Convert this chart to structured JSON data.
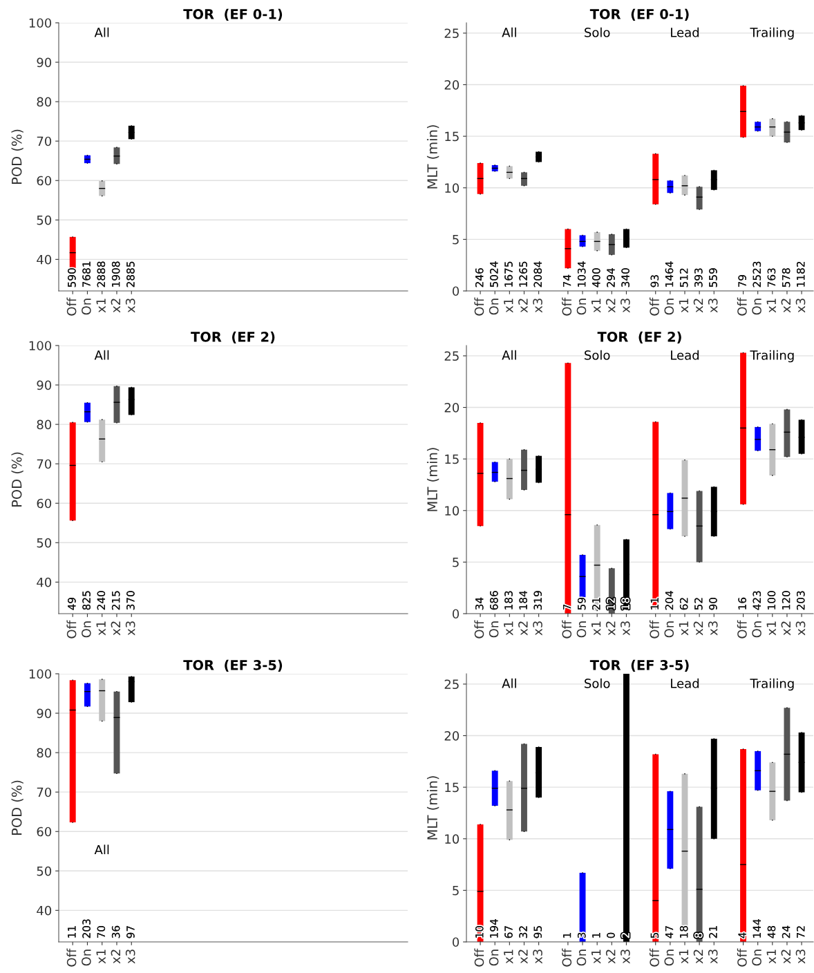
{
  "chart_data": [
    {
      "type": "box",
      "title": "TOR  (EF 0-1)",
      "ylabel": "POD (%)",
      "ylim": [
        32,
        100
      ],
      "yticks": [
        40,
        50,
        60,
        70,
        80,
        90,
        100
      ],
      "grid": "y",
      "annotations": [
        "All"
      ],
      "categories": [
        "Off",
        "On",
        "x1",
        "x2",
        "x3",
        null,
        null,
        null,
        null,
        null,
        null,
        null,
        null,
        null,
        null,
        null,
        null,
        null,
        null,
        null,
        null,
        null,
        null
      ],
      "colors": [
        "#ff0000",
        "#0000ff",
        "#c0c0c0",
        "#555555",
        "#000000",
        null,
        null,
        null,
        null,
        null,
        null,
        null,
        null,
        null,
        null,
        null,
        null,
        null,
        null,
        null,
        null,
        null,
        null
      ],
      "value_labels": [
        "590",
        "7681",
        "2888",
        "1908",
        "2885",
        null,
        null,
        null,
        null,
        null,
        null,
        null,
        null,
        null,
        null,
        null,
        null,
        null,
        null,
        null,
        null,
        null,
        null
      ],
      "boxes": [
        {
          "low": 37.8,
          "q1": 37.8,
          "median": 41.7,
          "q3": 45.7,
          "high": 45.7
        },
        {
          "low": 64.4,
          "q1": 64.4,
          "median": 65.4,
          "q3": 66.4,
          "high": 66.4
        },
        {
          "low": 56.1,
          "q1": 56.1,
          "median": 58.0,
          "q3": 59.9,
          "high": 59.9
        },
        {
          "low": 64.2,
          "q1": 64.2,
          "median": 66.2,
          "q3": 68.4,
          "high": 68.4
        },
        {
          "low": 70.5,
          "q1": 70.5,
          "median": 72.2,
          "q3": 73.9,
          "high": 73.9
        },
        null,
        null,
        null,
        null,
        null,
        null,
        null,
        null,
        null,
        null,
        null,
        null,
        null,
        null,
        null,
        null,
        null,
        null
      ]
    },
    {
      "type": "box",
      "title": "TOR  (EF 0-1)",
      "ylabel": "MLT (min)",
      "ylim": [
        0,
        26
      ],
      "yticks": [
        0,
        5,
        10,
        15,
        20,
        25
      ],
      "grid": "y",
      "annotations": [
        "All",
        "Solo",
        "Lead",
        "Trailing"
      ],
      "categories": [
        "Off",
        "On",
        "x1",
        "x2",
        "x3",
        null,
        "Off",
        "On",
        "x1",
        "x2",
        "x3",
        null,
        "Off",
        "On",
        "x1",
        "x2",
        "x3",
        null,
        "Off",
        "On",
        "x1",
        "x2",
        "x3"
      ],
      "colors": [
        "#ff0000",
        "#0000ff",
        "#c0c0c0",
        "#555555",
        "#000000",
        null,
        "#ff0000",
        "#0000ff",
        "#c0c0c0",
        "#555555",
        "#000000",
        null,
        "#ff0000",
        "#0000ff",
        "#c0c0c0",
        "#555555",
        "#000000",
        null,
        "#ff0000",
        "#0000ff",
        "#c0c0c0",
        "#555555",
        "#000000"
      ],
      "value_labels": [
        "246",
        "5024",
        "1675",
        "1265",
        "2084",
        null,
        "74",
        "1034",
        "400",
        "294",
        "340",
        null,
        "93",
        "1464",
        "512",
        "393",
        "559",
        null,
        "79",
        "2523",
        "763",
        "578",
        "1182"
      ],
      "boxes": [
        {
          "low": 9.4,
          "q1": 9.4,
          "median": 10.9,
          "q3": 12.4,
          "high": 12.4
        },
        {
          "low": 11.6,
          "q1": 11.6,
          "median": 11.9,
          "q3": 12.2,
          "high": 12.2
        },
        {
          "low": 10.9,
          "q1": 10.9,
          "median": 11.5,
          "q3": 12.1,
          "high": 12.1
        },
        {
          "low": 10.2,
          "q1": 10.2,
          "median": 10.9,
          "q3": 11.5,
          "high": 11.5
        },
        {
          "low": 12.5,
          "q1": 12.5,
          "median": 13.0,
          "q3": 13.5,
          "high": 13.5
        },
        null,
        {
          "low": 2.2,
          "q1": 2.2,
          "median": 4.1,
          "q3": 6.0,
          "high": 6.0
        },
        {
          "low": 4.3,
          "q1": 4.3,
          "median": 4.8,
          "q3": 5.4,
          "high": 5.4
        },
        {
          "low": 3.9,
          "q1": 3.9,
          "median": 4.8,
          "q3": 5.7,
          "high": 5.7
        },
        {
          "low": 3.5,
          "q1": 3.5,
          "median": 4.5,
          "q3": 5.5,
          "high": 5.5
        },
        {
          "low": 4.2,
          "q1": 4.2,
          "median": 5.1,
          "q3": 6.0,
          "high": 6.0
        },
        null,
        {
          "low": 8.4,
          "q1": 8.4,
          "median": 10.8,
          "q3": 13.3,
          "high": 13.3
        },
        {
          "low": 9.5,
          "q1": 9.5,
          "median": 10.1,
          "q3": 10.7,
          "high": 10.7
        },
        {
          "low": 9.3,
          "q1": 9.3,
          "median": 10.2,
          "q3": 11.2,
          "high": 11.2
        },
        {
          "low": 7.9,
          "q1": 7.9,
          "median": 9.1,
          "q3": 10.1,
          "high": 10.1
        },
        {
          "low": 9.8,
          "q1": 9.8,
          "median": 10.8,
          "q3": 11.7,
          "high": 11.7
        },
        null,
        {
          "low": 14.9,
          "q1": 14.9,
          "median": 17.4,
          "q3": 19.9,
          "high": 19.9
        },
        {
          "low": 15.5,
          "q1": 15.5,
          "median": 15.9,
          "q3": 16.4,
          "high": 16.4
        },
        {
          "low": 15.0,
          "q1": 15.0,
          "median": 15.9,
          "q3": 16.7,
          "high": 16.7
        },
        {
          "low": 14.4,
          "q1": 14.4,
          "median": 15.4,
          "q3": 16.4,
          "high": 16.4
        },
        {
          "low": 15.6,
          "q1": 15.6,
          "median": 16.3,
          "q3": 17.0,
          "high": 17.0
        }
      ]
    },
    {
      "type": "box",
      "title": "TOR  (EF 2)",
      "ylabel": "POD (%)",
      "ylim": [
        32,
        100
      ],
      "yticks": [
        40,
        50,
        60,
        70,
        80,
        90,
        100
      ],
      "grid": "y",
      "annotations": [
        "All"
      ],
      "categories": [
        "Off",
        "On",
        "x1",
        "x2",
        "x3",
        null,
        null,
        null,
        null,
        null,
        null,
        null,
        null,
        null,
        null,
        null,
        null,
        null,
        null,
        null,
        null,
        null,
        null
      ],
      "colors": [
        "#ff0000",
        "#0000ff",
        "#c0c0c0",
        "#555555",
        "#000000",
        null,
        null,
        null,
        null,
        null,
        null,
        null,
        null,
        null,
        null,
        null,
        null,
        null,
        null,
        null,
        null,
        null,
        null
      ],
      "value_labels": [
        "49",
        "825",
        "240",
        "215",
        "370",
        null,
        null,
        null,
        null,
        null,
        null,
        null,
        null,
        null,
        null,
        null,
        null,
        null,
        null,
        null,
        null,
        null,
        null
      ],
      "boxes": [
        {
          "low": 55.6,
          "q1": 55.6,
          "median": 69.6,
          "q3": 80.5,
          "high": 80.5
        },
        {
          "low": 80.6,
          "q1": 80.6,
          "median": 83.2,
          "q3": 85.5,
          "high": 85.5
        },
        {
          "low": 70.5,
          "q1": 70.5,
          "median": 76.3,
          "q3": 81.2,
          "high": 81.2
        },
        {
          "low": 80.4,
          "q1": 80.4,
          "median": 85.6,
          "q3": 89.7,
          "high": 89.7
        },
        {
          "low": 82.4,
          "q1": 82.4,
          "median": 86.3,
          "q3": 89.4,
          "high": 89.4
        },
        null,
        null,
        null,
        null,
        null,
        null,
        null,
        null,
        null,
        null,
        null,
        null,
        null,
        null,
        null,
        null,
        null,
        null
      ]
    },
    {
      "type": "box",
      "title": "TOR  (EF 2)",
      "ylabel": "MLT (min)",
      "ylim": [
        0,
        26
      ],
      "yticks": [
        0,
        5,
        10,
        15,
        20,
        25
      ],
      "grid": "y",
      "annotations": [
        "All",
        "Solo",
        "Lead",
        "Trailing"
      ],
      "categories": [
        "Off",
        "On",
        "x1",
        "x2",
        "x3",
        null,
        "Off",
        "On",
        "x1",
        "x2",
        "x3",
        null,
        "Off",
        "On",
        "x1",
        "x2",
        "x3",
        null,
        "Off",
        "On",
        "x1",
        "x2",
        "x3"
      ],
      "colors": [
        "#ff0000",
        "#0000ff",
        "#c0c0c0",
        "#555555",
        "#000000",
        null,
        "#ff0000",
        "#0000ff",
        "#c0c0c0",
        "#555555",
        "#000000",
        null,
        "#ff0000",
        "#0000ff",
        "#c0c0c0",
        "#555555",
        "#000000",
        null,
        "#ff0000",
        "#0000ff",
        "#c0c0c0",
        "#555555",
        "#000000"
      ],
      "value_labels": [
        "34",
        "686",
        "183",
        "184",
        "319",
        null,
        "7",
        "59",
        "21",
        "12",
        "18",
        null,
        "11",
        "204",
        "62",
        "52",
        "90",
        null,
        "16",
        "423",
        "100",
        "120",
        "203"
      ],
      "boxes": [
        {
          "low": 8.5,
          "q1": 8.5,
          "median": 13.6,
          "q3": 18.5,
          "high": 18.5
        },
        {
          "low": 12.8,
          "q1": 12.8,
          "median": 13.7,
          "q3": 14.7,
          "high": 14.7
        },
        {
          "low": 11.1,
          "q1": 11.1,
          "median": 13.1,
          "q3": 15.0,
          "high": 15.0
        },
        {
          "low": 12.0,
          "q1": 12.0,
          "median": 13.9,
          "q3": 15.9,
          "high": 15.9
        },
        {
          "low": 12.7,
          "q1": 12.7,
          "median": 14.0,
          "q3": 15.3,
          "high": 15.3
        },
        null,
        {
          "low": 0,
          "q1": 0,
          "median": 9.6,
          "q3": 24.3,
          "high": 24.3
        },
        {
          "low": 1.6,
          "q1": 1.6,
          "median": 3.6,
          "q3": 5.7,
          "high": 5.7
        },
        {
          "low": 0.3,
          "q1": 0.3,
          "median": 4.7,
          "q3": 8.6,
          "high": 8.6
        },
        {
          "low": 0,
          "q1": 0,
          "median": 1.4,
          "q3": 4.4,
          "high": 4.4
        },
        {
          "low": 0.4,
          "q1": 0.4,
          "median": 3.8,
          "q3": 7.2,
          "high": 7.2
        },
        null,
        {
          "low": 0.5,
          "q1": 0.5,
          "median": 9.6,
          "q3": 18.6,
          "high": 18.6
        },
        {
          "low": 8.2,
          "q1": 8.2,
          "median": 9.9,
          "q3": 11.7,
          "high": 11.7
        },
        {
          "low": 7.5,
          "q1": 7.5,
          "median": 11.2,
          "q3": 14.9,
          "high": 14.9
        },
        {
          "low": 5.0,
          "q1": 5.0,
          "median": 8.5,
          "q3": 11.9,
          "high": 11.9
        },
        {
          "low": 7.5,
          "q1": 7.5,
          "median": 9.9,
          "q3": 12.3,
          "high": 12.3
        },
        null,
        {
          "low": 10.6,
          "q1": 10.6,
          "median": 18.0,
          "q3": 25.3,
          "high": 25.3
        },
        {
          "low": 15.8,
          "q1": 15.8,
          "median": 16.9,
          "q3": 18.1,
          "high": 18.1
        },
        {
          "low": 13.4,
          "q1": 13.4,
          "median": 15.9,
          "q3": 18.4,
          "high": 18.4
        },
        {
          "low": 15.2,
          "q1": 15.2,
          "median": 17.6,
          "q3": 19.8,
          "high": 19.8
        },
        {
          "low": 15.5,
          "q1": 15.5,
          "median": 17.1,
          "q3": 18.8,
          "high": 18.8
        }
      ]
    },
    {
      "type": "box",
      "title": "TOR  (EF 3-5)",
      "ylabel": "POD (%)",
      "ylim": [
        32,
        100
      ],
      "yticks": [
        40,
        50,
        60,
        70,
        80,
        90,
        100
      ],
      "grid": "y",
      "annotations": [
        "All"
      ],
      "categories": [
        "Off",
        "On",
        "x1",
        "x2",
        "x3",
        null,
        null,
        null,
        null,
        null,
        null,
        null,
        null,
        null,
        null,
        null,
        null,
        null,
        null,
        null,
        null,
        null,
        null
      ],
      "colors": [
        "#ff0000",
        "#0000ff",
        "#c0c0c0",
        "#555555",
        "#000000",
        null,
        null,
        null,
        null,
        null,
        null,
        null,
        null,
        null,
        null,
        null,
        null,
        null,
        null,
        null,
        null,
        null,
        null
      ],
      "value_labels": [
        "11",
        "203",
        "70",
        "36",
        "97",
        null,
        null,
        null,
        null,
        null,
        null,
        null,
        null,
        null,
        null,
        null,
        null,
        null,
        null,
        null,
        null,
        null,
        null
      ],
      "boxes": [
        {
          "low": 62.3,
          "q1": 62.3,
          "median": 90.8,
          "q3": 98.4,
          "high": 98.4
        },
        {
          "low": 91.7,
          "q1": 91.7,
          "median": 95.5,
          "q3": 97.6,
          "high": 97.6
        },
        {
          "low": 88.0,
          "q1": 88.0,
          "median": 95.7,
          "q3": 98.6,
          "high": 98.6
        },
        {
          "low": 74.7,
          "q1": 74.7,
          "median": 88.9,
          "q3": 95.5,
          "high": 95.5
        },
        {
          "low": 92.8,
          "q1": 92.8,
          "median": 98.0,
          "q3": 99.3,
          "high": 99.3
        },
        null,
        null,
        null,
        null,
        null,
        null,
        null,
        null,
        null,
        null,
        null,
        null,
        null,
        null,
        null,
        null,
        null,
        null
      ]
    },
    {
      "type": "box",
      "title": "TOR  (EF 3-5)",
      "ylabel": "MLT (min)",
      "ylim": [
        0,
        26
      ],
      "yticks": [
        0,
        5,
        10,
        15,
        20,
        25
      ],
      "grid": "y",
      "annotations": [
        "All",
        "Solo",
        "Lead",
        "Trailing"
      ],
      "categories": [
        "Off",
        "On",
        "x1",
        "x2",
        "x3",
        null,
        "Off",
        "On",
        "x1",
        "x2",
        "x3",
        null,
        "Off",
        "On",
        "x1",
        "x2",
        "x3",
        null,
        "Off",
        "On",
        "x1",
        "x2",
        "x3"
      ],
      "colors": [
        "#ff0000",
        "#0000ff",
        "#c0c0c0",
        "#555555",
        "#000000",
        null,
        "#ff0000",
        "#0000ff",
        "#c0c0c0",
        "#555555",
        "#000000",
        null,
        "#ff0000",
        "#0000ff",
        "#c0c0c0",
        "#555555",
        "#000000",
        null,
        "#ff0000",
        "#0000ff",
        "#c0c0c0",
        "#555555",
        "#000000"
      ],
      "value_labels": [
        "10",
        "194",
        "67",
        "32",
        "95",
        null,
        "1",
        "3",
        "1",
        "0",
        "2",
        null,
        "5",
        "47",
        "18",
        "8",
        "21",
        null,
        "4",
        "144",
        "48",
        "24",
        "72"
      ],
      "boxes": [
        {
          "low": 0,
          "q1": 0,
          "median": 4.9,
          "q3": 11.4,
          "high": 11.4
        },
        {
          "low": 13.2,
          "q1": 13.2,
          "median": 14.9,
          "q3": 16.6,
          "high": 16.6
        },
        {
          "low": 9.9,
          "q1": 9.9,
          "median": 12.8,
          "q3": 15.6,
          "high": 15.6
        },
        {
          "low": 10.7,
          "q1": 10.7,
          "median": 14.9,
          "q3": 19.2,
          "high": 19.2
        },
        {
          "low": 14.0,
          "q1": 14.0,
          "median": 16.4,
          "q3": 18.9,
          "high": 18.9
        },
        null,
        null,
        {
          "low": 0,
          "q1": 0,
          "median": null,
          "q3": 6.7,
          "high": 6.7
        },
        null,
        null,
        {
          "low": 0,
          "q1": 0,
          "median": null,
          "q3": 26,
          "high": 26
        },
        null,
        {
          "low": 0,
          "q1": 0,
          "median": 4.0,
          "q3": 18.2,
          "high": 18.2
        },
        {
          "low": 7.1,
          "q1": 7.1,
          "median": 10.9,
          "q3": 14.6,
          "high": 14.6
        },
        {
          "low": 1.5,
          "q1": 1.5,
          "median": 8.8,
          "q3": 16.3,
          "high": 16.3
        },
        {
          "low": 0,
          "q1": 0,
          "median": 5.1,
          "q3": 13.1,
          "high": 13.1
        },
        {
          "low": 10.0,
          "q1": 10.0,
          "median": 14.9,
          "q3": 19.7,
          "high": 19.7
        },
        null,
        {
          "low": 0,
          "q1": 0,
          "median": 7.5,
          "q3": 18.7,
          "high": 18.7
        },
        {
          "low": 14.7,
          "q1": 14.7,
          "median": 16.6,
          "q3": 18.5,
          "high": 18.5
        },
        {
          "low": 11.8,
          "q1": 11.8,
          "median": 14.6,
          "q3": 17.4,
          "high": 17.4
        },
        {
          "low": 13.7,
          "q1": 13.7,
          "median": 18.2,
          "q3": 22.7,
          "high": 22.7
        },
        {
          "low": 14.5,
          "q1": 14.5,
          "median": 17.4,
          "q3": 20.3,
          "high": 20.3
        }
      ]
    }
  ]
}
